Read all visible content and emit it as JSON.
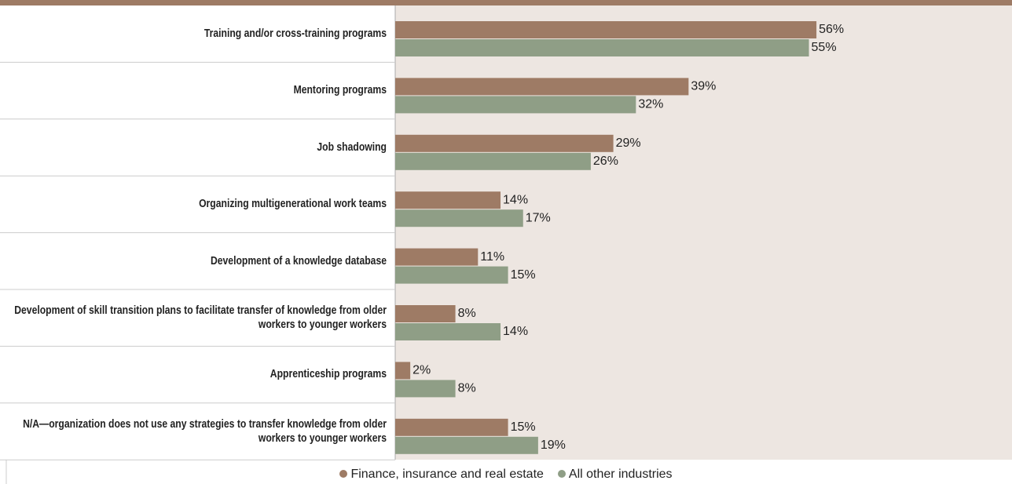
{
  "chart_data": {
    "type": "bar",
    "orientation": "horizontal",
    "categories": [
      "Training and/or cross-training programs",
      "Mentoring programs",
      "Job shadowing",
      "Organizing multigenerational work teams",
      "Development of a knowledge database",
      "Development of skill transition plans to facilitate transfer of knowledge from older workers to younger workers",
      "Apprenticeship programs",
      "N/A—organization does not use any strategies to transfer knowledge from older workers to younger workers"
    ],
    "series": [
      {
        "name": "Finance, insurance and real estate",
        "color": "#9e7b65",
        "values": [
          56,
          39,
          29,
          14,
          11,
          8,
          2,
          15
        ],
        "value_labels": [
          "56%",
          "39%",
          "29%",
          "14%",
          "11%",
          "8%",
          "2%",
          "15%"
        ]
      },
      {
        "name": "All other industries",
        "color": "#8f9e86",
        "values": [
          55,
          32,
          26,
          17,
          15,
          14,
          8,
          19
        ],
        "value_labels": [
          "55%",
          "32%",
          "26%",
          "17%",
          "15%",
          "14%",
          "8%",
          "19%"
        ]
      }
    ],
    "xlim": [
      0,
      82
    ],
    "legend": "bottom"
  }
}
